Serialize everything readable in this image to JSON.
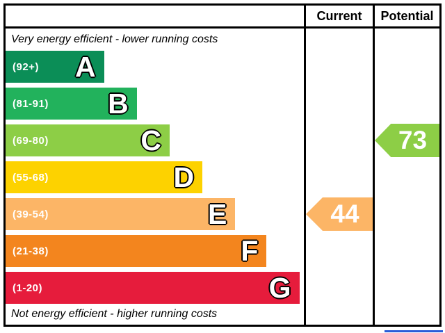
{
  "header": {
    "current_label": "Current",
    "potential_label": "Potential"
  },
  "captions": {
    "top": "Very energy efficient - lower running costs",
    "bottom": "Not energy efficient - higher running costs"
  },
  "chart_data": {
    "type": "bar",
    "orientation": "horizontal",
    "bands": [
      {
        "letter": "A",
        "range_label": "(92+)",
        "score_min": 92,
        "score_max": 100,
        "color": "#0b8e57",
        "width_pct": 33
      },
      {
        "letter": "B",
        "range_label": "(81-91)",
        "score_min": 81,
        "score_max": 91,
        "color": "#22b25c",
        "width_pct": 44
      },
      {
        "letter": "C",
        "range_label": "(69-80)",
        "score_min": 69,
        "score_max": 80,
        "color": "#8dce46",
        "width_pct": 55
      },
      {
        "letter": "D",
        "range_label": "(55-68)",
        "score_min": 55,
        "score_max": 68,
        "color": "#fdd200",
        "width_pct": 66
      },
      {
        "letter": "E",
        "range_label": "(39-54)",
        "score_min": 39,
        "score_max": 54,
        "color": "#fcb566",
        "width_pct": 77
      },
      {
        "letter": "F",
        "range_label": "(21-38)",
        "score_min": 21,
        "score_max": 38,
        "color": "#f3851e",
        "width_pct": 87.5
      },
      {
        "letter": "G",
        "range_label": "(1-20)",
        "score_min": 1,
        "score_max": 20,
        "color": "#e61c3c",
        "width_pct": 98.5
      }
    ],
    "markers": [
      {
        "column": "current",
        "value": 44,
        "band": "E",
        "band_index": 4,
        "color": "#fcb566"
      },
      {
        "column": "potential",
        "value": 73,
        "band": "C",
        "band_index": 2,
        "color": "#8dce46"
      }
    ]
  },
  "colors": {
    "border": "#000000",
    "background": "#ffffff",
    "cutoff_strip": "#2a5cd8"
  }
}
